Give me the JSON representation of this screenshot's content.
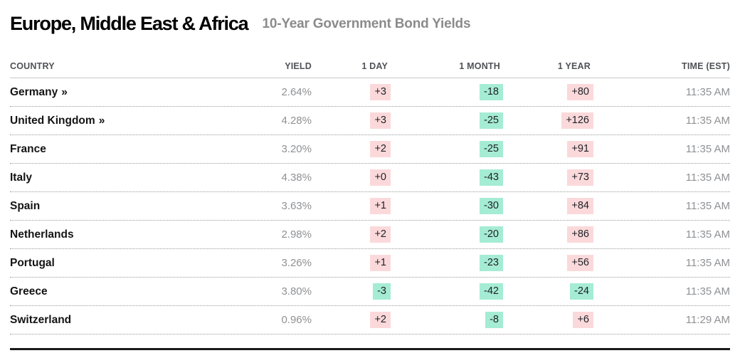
{
  "header": {
    "title": "Europe, Middle East & Africa",
    "subtitle": "10-Year Government Bond Yields"
  },
  "colors": {
    "positive_change_bg": "#fbd9db",
    "negative_change_bg": "#a5ecd4",
    "badge_text": "#1e2126",
    "muted_text": "#8f9194",
    "country_text": "#141414"
  },
  "chart_data": {
    "type": "table",
    "title": "Europe, Middle East & Africa",
    "subtitle": "10-Year Government Bond Yields",
    "columns": [
      "COUNTRY",
      "YIELD",
      "1 DAY",
      "1 MONTH",
      "1 YEAR",
      "TIME (EST)"
    ],
    "rows": [
      {
        "country": "Germany",
        "arrow": "»",
        "yield": "2.64%",
        "d1": "+3",
        "m1": "-18",
        "y1": "+80",
        "time": "11:35 AM"
      },
      {
        "country": "United Kingdom",
        "arrow": "»",
        "yield": "4.28%",
        "d1": "+3",
        "m1": "-25",
        "y1": "+126",
        "time": "11:35 AM"
      },
      {
        "country": "France",
        "yield": "3.20%",
        "d1": "+2",
        "m1": "-25",
        "y1": "+91",
        "time": "11:35 AM"
      },
      {
        "country": "Italy",
        "yield": "4.38%",
        "d1": "+0",
        "m1": "-43",
        "y1": "+73",
        "time": "11:35 AM"
      },
      {
        "country": "Spain",
        "yield": "3.63%",
        "d1": "+1",
        "m1": "-30",
        "y1": "+84",
        "time": "11:35 AM"
      },
      {
        "country": "Netherlands",
        "yield": "2.98%",
        "d1": "+2",
        "m1": "-20",
        "y1": "+86",
        "time": "11:35 AM"
      },
      {
        "country": "Portugal",
        "yield": "3.26%",
        "d1": "+1",
        "m1": "-23",
        "y1": "+56",
        "time": "11:35 AM"
      },
      {
        "country": "Greece",
        "yield": "3.80%",
        "d1": "-3",
        "m1": "-42",
        "y1": "-24",
        "time": "11:35 AM"
      },
      {
        "country": "Switzerland",
        "yield": "0.96%",
        "d1": "+2",
        "m1": "-8",
        "y1": "+6",
        "time": "11:29 AM"
      }
    ]
  }
}
